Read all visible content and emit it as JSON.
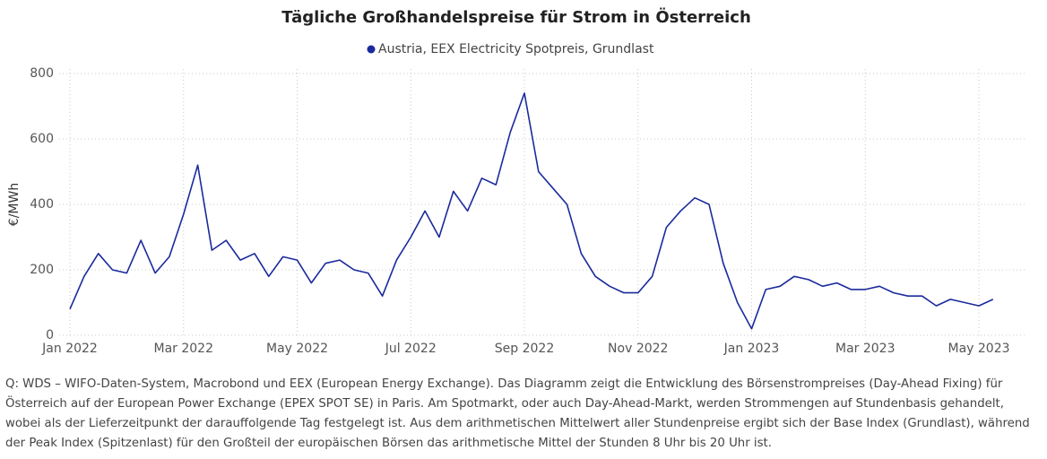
{
  "chart_data": {
    "type": "line",
    "title": "Tägliche Großhandelspreise für Strom in Österreich",
    "y_label": "€/MWh",
    "categories": [
      "Jan 2022",
      null,
      null,
      null,
      null,
      null,
      null,
      null,
      "Mar 2022",
      null,
      null,
      null,
      null,
      null,
      null,
      null,
      "May 2022",
      null,
      null,
      null,
      null,
      null,
      null,
      null,
      "Jul 2022",
      null,
      null,
      null,
      null,
      null,
      null,
      null,
      "Sep 2022",
      null,
      null,
      null,
      null,
      null,
      null,
      null,
      "Nov 2022",
      null,
      null,
      null,
      null,
      null,
      null,
      null,
      "Jan 2023",
      null,
      null,
      null,
      null,
      null,
      null,
      null,
      "Mar 2023",
      null,
      null,
      null,
      null,
      null,
      null,
      null,
      "May 2023",
      null
    ],
    "series": [
      {
        "name": "Austria, EEX Electricity Spotpreis, Grundlast",
        "color": "#1a2a9c",
        "values": [
          80,
          180,
          250,
          200,
          190,
          290,
          190,
          240,
          370,
          520,
          260,
          290,
          230,
          250,
          180,
          240,
          230,
          160,
          220,
          230,
          200,
          190,
          120,
          230,
          300,
          380,
          300,
          440,
          380,
          480,
          460,
          620,
          740,
          500,
          450,
          400,
          250,
          180,
          150,
          130,
          130,
          180,
          330,
          380,
          420,
          400,
          220,
          100,
          20,
          140,
          150,
          180,
          170,
          150,
          160,
          140,
          140,
          150,
          130,
          120,
          120,
          90,
          110,
          100,
          90,
          110
        ]
      }
    ],
    "ylim": [
      0,
      800
    ],
    "yticks": [
      0,
      200,
      400,
      600,
      800
    ],
    "grid": true,
    "legend": "top"
  },
  "footnote": "Q: WDS – WIFO-Daten-System, Macrobond und EEX (European Energy Exchange). Das Diagramm zeigt die Entwicklung des Börsenstrompreises (Day-Ahead Fixing) für Österreich auf der European Power Exchange (EPEX SPOT SE) in Paris. Am Spotmarkt, oder auch Day-Ahead-Markt, werden Strommengen auf Stundenbasis gehandelt, wobei als der Lieferzeitpunkt der darauffolgende Tag festgelegt ist. Aus dem arithmetischen Mittelwert aller Stundenpreise ergibt sich der Base Index (Grundlast), während der Peak Index (Spitzenlast) für den Großteil der europäischen Börsen das arithmetische Mittel der Stunden 8 Uhr bis 20 Uhr ist."
}
